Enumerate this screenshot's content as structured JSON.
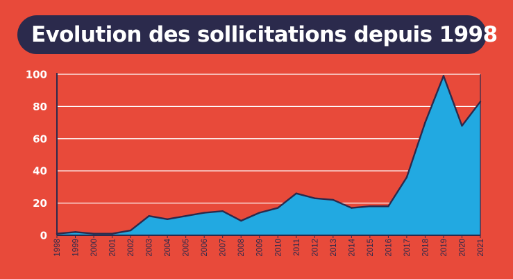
{
  "header": {
    "title": "Evolution des sollicitations depuis 1998"
  },
  "chart_data": {
    "type": "area",
    "title": "Evolution des sollicitations depuis 1998",
    "xlabel": "",
    "ylabel": "",
    "x": [
      "1998",
      "1999",
      "2000",
      "2001",
      "2002",
      "2003",
      "2004",
      "2005",
      "2006",
      "2007",
      "2008",
      "2009",
      "2010",
      "2011",
      "2012",
      "2013",
      "2014",
      "2015",
      "2016",
      "2017",
      "2018",
      "2019",
      "2020",
      "2021"
    ],
    "series": [
      {
        "values": [
          1,
          2,
          1,
          1,
          3,
          12,
          10,
          12,
          14,
          15,
          9,
          14,
          17,
          26,
          23,
          22,
          17,
          18,
          18,
          36,
          70,
          99,
          68,
          83
        ]
      }
    ],
    "yticks": [
      0,
      20,
      40,
      60,
      80,
      100
    ],
    "ylim": [
      0,
      100
    ],
    "grid": true,
    "legend": "none",
    "colors": {
      "background": "#e84a3a",
      "title_bg": "#2b2a4c",
      "area_fill": "#22a9e1",
      "line": "#2b2a4c",
      "grid": "#ffffff",
      "ytick_text": "#ffffff",
      "xtick_text": "#2b2a4c"
    }
  }
}
